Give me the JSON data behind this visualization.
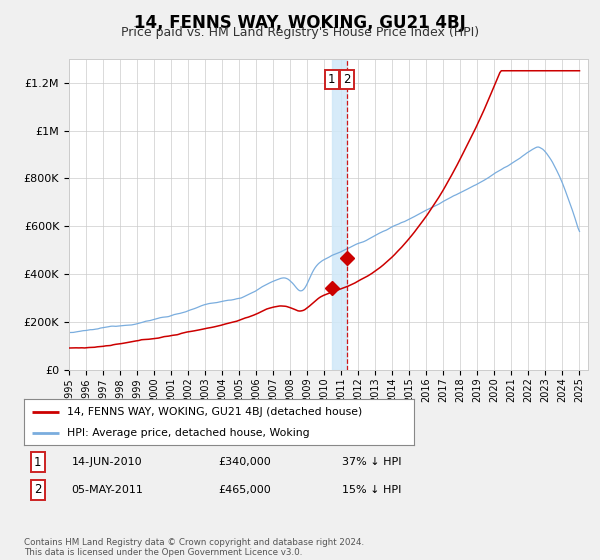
{
  "title": "14, FENNS WAY, WOKING, GU21 4BJ",
  "subtitle": "Price paid vs. HM Land Registry's House Price Index (HPI)",
  "ylabel_ticks": [
    "£0",
    "£200K",
    "£400K",
    "£600K",
    "£800K",
    "£1M",
    "£1.2M"
  ],
  "ytick_vals": [
    0,
    200000,
    400000,
    600000,
    800000,
    1000000,
    1200000
  ],
  "ylim": [
    0,
    1300000
  ],
  "hpi_color": "#7aadde",
  "price_color": "#cc0000",
  "purchase1_date": 2010.45,
  "purchase1_price": 340000,
  "purchase2_date": 2011.34,
  "purchase2_price": 465000,
  "legend_entry1": "14, FENNS WAY, WOKING, GU21 4BJ (detached house)",
  "legend_entry2": "HPI: Average price, detached house, Woking",
  "annotation1_date": "14-JUN-2010",
  "annotation1_price": "£340,000",
  "annotation1_pct": "37% ↓ HPI",
  "annotation2_date": "05-MAY-2011",
  "annotation2_price": "£465,000",
  "annotation2_pct": "15% ↓ HPI",
  "footer": "Contains HM Land Registry data © Crown copyright and database right 2024.\nThis data is licensed under the Open Government Licence v3.0.",
  "background_color": "#f0f0f0",
  "plot_bg_color": "#ffffff",
  "grid_color": "#cccccc",
  "title_fontsize": 12,
  "subtitle_fontsize": 9,
  "tick_fontsize": 8
}
